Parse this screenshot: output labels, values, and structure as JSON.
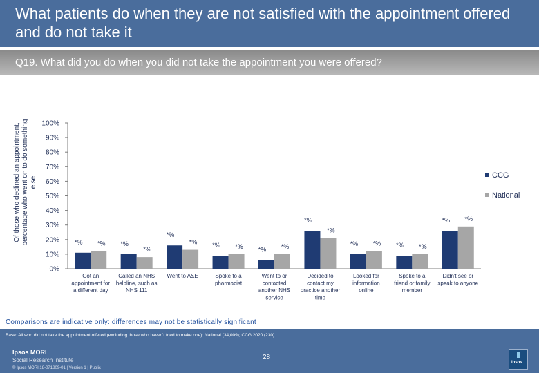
{
  "header": {
    "title": "What patients do when they are not satisfied with the appointment offered and do not take it",
    "question": "Q19. What did you do when you did not take the appointment you were offered?"
  },
  "colors": {
    "header_bg": "#4a6d9c",
    "ccg": "#1f3b73",
    "national": "#a6a6a6"
  },
  "chart_data": {
    "type": "bar",
    "ylabel": "Of those who declined an appointment, percentage who went on to do something else",
    "ylim": [
      0,
      100
    ],
    "yticks": [
      "0%",
      "10%",
      "20%",
      "30%",
      "40%",
      "50%",
      "60%",
      "70%",
      "80%",
      "90%",
      "100%"
    ],
    "grid": false,
    "legend_position": "right",
    "categories": [
      [
        "Got an",
        "appointment for",
        "a different day"
      ],
      [
        "Called an NHS",
        "helpline, such as",
        "NHS 111"
      ],
      [
        "Went to A&E"
      ],
      [
        "Spoke to a",
        "pharmacist"
      ],
      [
        "Went to or",
        "contacted",
        "another NHS",
        "service"
      ],
      [
        "Decided to",
        "contact my",
        "practice another",
        "time"
      ],
      [
        "Looked for",
        "information",
        "online"
      ],
      [
        "Spoke to a",
        "friend or family",
        "member"
      ],
      [
        "Didn't see or",
        "speak to anyone"
      ]
    ],
    "series": [
      {
        "name": "CCG",
        "values": [
          11,
          10,
          16,
          9,
          6,
          26,
          10,
          9,
          26
        ],
        "labels": [
          "*%",
          "*%",
          "*%",
          "*%",
          "*%",
          "*%",
          "*%",
          "*%",
          "*%"
        ]
      },
      {
        "name": "National",
        "values": [
          12,
          8,
          13,
          10,
          10,
          21,
          12,
          10,
          29
        ],
        "labels": [
          "*%",
          "*%",
          "*%",
          "*%",
          "*%",
          "*%",
          "*%",
          "*%",
          "*%"
        ]
      }
    ]
  },
  "note": "Comparisons are indicative only: differences may not be statistically significant",
  "footer": {
    "base": "Base: All who did not take the appointment offered (excluding those who haven't tried to make one): National (34,009); CCG 2020 (230)",
    "org_name": "Ipsos MORI",
    "org_sub": "Social Research Institute",
    "copyright": "© Ipsos MORI     18-071809-01 | Version 1 | Public",
    "page": "28",
    "logo_text": "Ipsos"
  }
}
